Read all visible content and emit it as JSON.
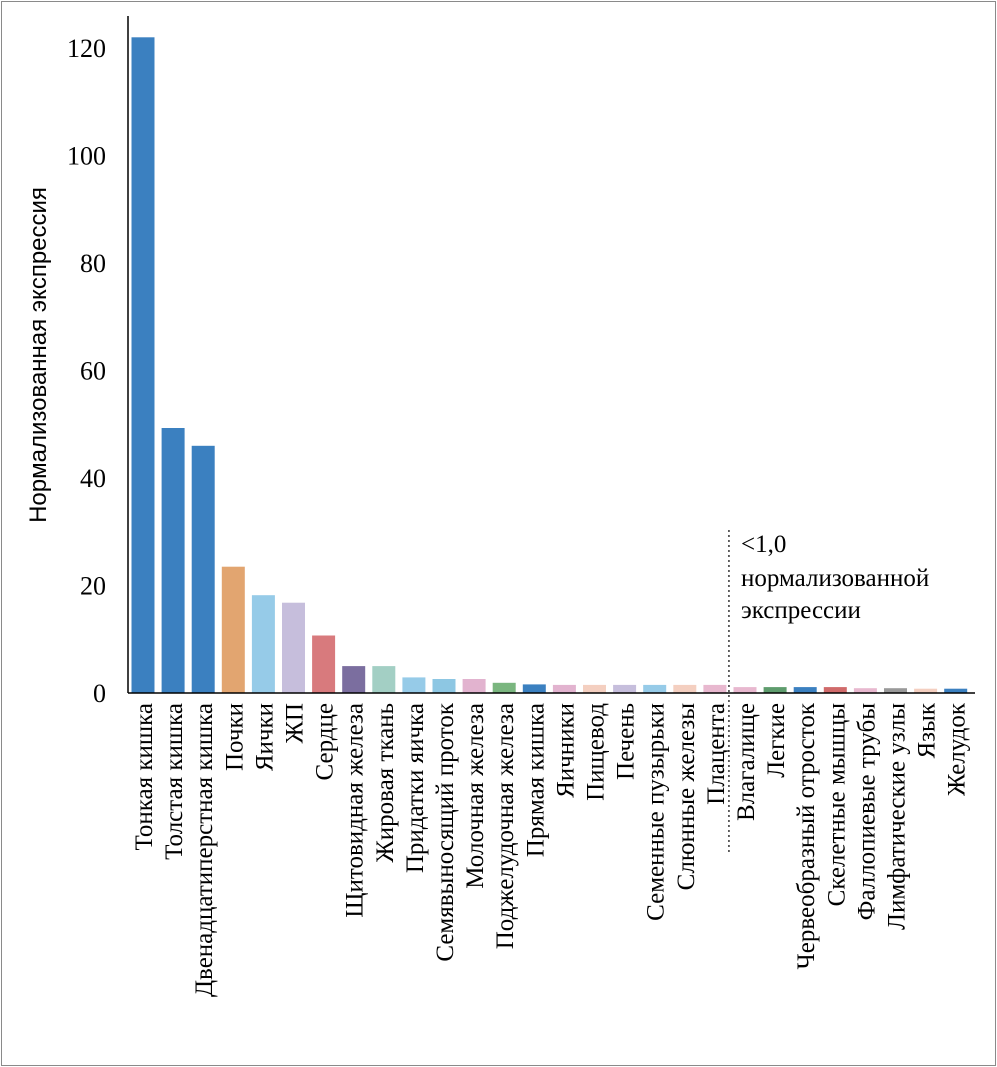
{
  "chart_data": {
    "type": "bar",
    "title": "",
    "xlabel": "",
    "ylabel": "Нормализованная экспрессия",
    "ylim": [
      0,
      120
    ],
    "yticks": [
      0,
      20,
      40,
      60,
      80,
      100,
      120
    ],
    "grid": false,
    "categories": [
      "Тонкая кишка",
      "Толстая кишка",
      "Двенадцатиперстная кишка",
      "Почки",
      "Яички",
      "ЖП",
      "Сердце",
      "Щитовидная железа",
      "Жировая ткань",
      "Придатки яичка",
      "Семявыносящий проток",
      "Молочная железа",
      "Поджелудочная железа",
      "Прямая кишка",
      "Яичники",
      "Пищевод",
      "Печень",
      "Семенные пузырьки",
      "Слюнные железы",
      "Плацента",
      "Влагалище",
      "Легкие",
      "Червеобразный отросток",
      "Скелетные мышцы",
      "Фаллопиевые трубы",
      "Лимфатические узлы",
      "Язык",
      "Желудок"
    ],
    "values": [
      122,
      49.3,
      46,
      23.5,
      18.2,
      16.8,
      10.7,
      5,
      5,
      2.9,
      2.6,
      2.6,
      1.9,
      1.6,
      1.5,
      1.5,
      1.5,
      1.5,
      1.5,
      1.5,
      1.1,
      1.1,
      1.1,
      1.1,
      0.9,
      0.9,
      0.8,
      0.8
    ],
    "colors": [
      "#3b80c0",
      "#3b80c0",
      "#3b80c0",
      "#e2a570",
      "#96cbe8",
      "#c6bedc",
      "#d87a7d",
      "#7b6e9f",
      "#a3cfc4",
      "#96cbe8",
      "#8dc7e3",
      "#e2b3cf",
      "#7ab67f",
      "#3b80c0",
      "#e2b3cf",
      "#f4cfc0",
      "#c6bedc",
      "#96cbe8",
      "#f4cfc0",
      "#e8b8cf",
      "#e8b8cf",
      "#5e9c6d",
      "#3b80c0",
      "#d06a6a",
      "#e8b8cf",
      "#999999",
      "#f4cfc0",
      "#3b80c0"
    ],
    "annotation": {
      "lines": [
        "<1,0",
        "нормализованной",
        "экспрессии"
      ],
      "divider_after": "Плацента"
    }
  }
}
